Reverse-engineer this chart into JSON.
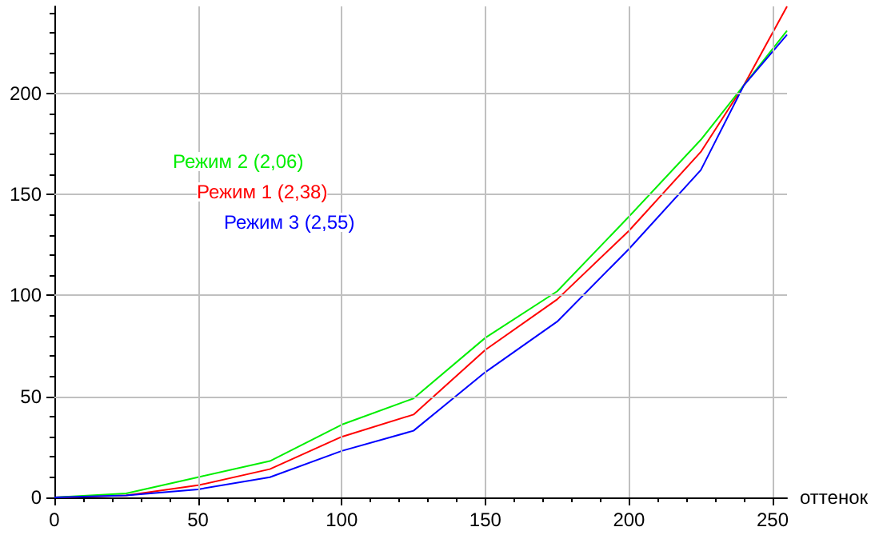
{
  "chart_data": {
    "type": "line",
    "xlabel": "оттенок",
    "x": [
      0,
      25,
      50,
      75,
      100,
      125,
      150,
      175,
      200,
      225,
      240,
      255
    ],
    "series": [
      {
        "name": "Режим 1 (2,38)",
        "color": "#ff0000",
        "values": [
          0,
          1,
          6,
          14,
          30,
          41,
          73,
          98,
          132,
          171,
          204,
          243
        ]
      },
      {
        "name": "Режим 2 (2,06)",
        "color": "#00ee00",
        "values": [
          0,
          2,
          10,
          18,
          36,
          49,
          79,
          102,
          139,
          177,
          204,
          231
        ]
      },
      {
        "name": "Режим 3 (2,55)",
        "color": "#0000ff",
        "values": [
          0,
          1,
          4,
          10,
          23,
          33,
          62,
          87,
          123,
          162,
          204,
          229
        ]
      }
    ],
    "xlim": [
      0,
      255
    ],
    "xticks": [
      0,
      50,
      100,
      150,
      200,
      250
    ],
    "ylim": [
      0,
      243
    ],
    "yticks": [
      0,
      50,
      100,
      150,
      200
    ],
    "grid": true,
    "legend": false,
    "marker": "none",
    "line_style": "solid"
  }
}
